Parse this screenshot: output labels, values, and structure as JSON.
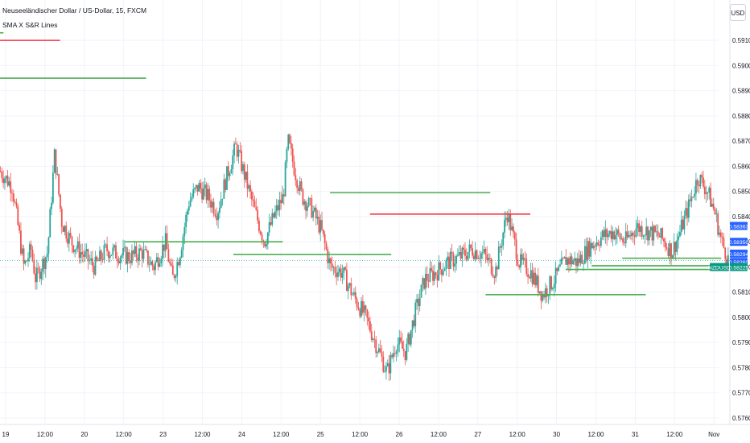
{
  "header": {
    "title": "Neuseeländischer Dollar / US-Dollar, 15, FXCM",
    "indicator": "SMA X S&R Lines"
  },
  "currency_button": "USD",
  "colors": {
    "up": "#26a69a",
    "down": "#ef5350",
    "support": "#4caf50",
    "resistance": "#f23645",
    "price_tag": "#089981",
    "level_tag": "#2962ff",
    "grid": "#f0f3fa"
  },
  "chart_data": {
    "type": "candlestick",
    "symbol": "NZDUSD",
    "title": "Neuseeländischer Dollar / US-Dollar, 15, FXCM",
    "indicator": "SMA X S&R Lines",
    "y_axis": {
      "unit": "USD",
      "range": [
        0.576,
        0.592
      ],
      "ticks": [
        "0.59100",
        "0.59000",
        "0.58900",
        "0.58800",
        "0.58700",
        "0.58600",
        "0.58500",
        "0.58400",
        "0.58300",
        "0.58200",
        "0.58100",
        "0.58000",
        "0.57900",
        "0.57800",
        "0.57700",
        "0.57600"
      ]
    },
    "x_axis": {
      "labels": [
        "19",
        "12:00",
        "20",
        "12:00",
        "23",
        "12:00",
        "24",
        "12:00",
        "25",
        "12:00",
        "26",
        "12:00",
        "27",
        "12:00",
        "30",
        "12:00",
        "31",
        "12:00",
        "Nov"
      ]
    },
    "grid": true,
    "price_path": [
      [
        0.0,
        0.5858
      ],
      [
        0.5,
        0.5852
      ],
      [
        1.0,
        0.582
      ],
      [
        1.3,
        0.5827
      ],
      [
        1.5,
        0.5815
      ],
      [
        2.0,
        0.5826
      ],
      [
        2.3,
        0.5865
      ],
      [
        2.6,
        0.5838
      ],
      [
        3.0,
        0.583
      ],
      [
        3.5,
        0.5825
      ],
      [
        4.0,
        0.582
      ],
      [
        4.5,
        0.5827
      ],
      [
        5.0,
        0.5825
      ],
      [
        5.5,
        0.5824
      ],
      [
        6.0,
        0.5826
      ],
      [
        6.5,
        0.582
      ],
      [
        7.0,
        0.583
      ],
      [
        7.3,
        0.5815
      ],
      [
        7.6,
        0.5825
      ],
      [
        8.0,
        0.5846
      ],
      [
        8.4,
        0.5852
      ],
      [
        8.8,
        0.5848
      ],
      [
        9.2,
        0.5842
      ],
      [
        9.6,
        0.5856
      ],
      [
        10.0,
        0.5868
      ],
      [
        10.4,
        0.5855
      ],
      [
        10.8,
        0.5842
      ],
      [
        11.2,
        0.583
      ],
      [
        11.6,
        0.584
      ],
      [
        12.0,
        0.5848
      ],
      [
        12.2,
        0.587
      ],
      [
        12.5,
        0.5858
      ],
      [
        12.8,
        0.5848
      ],
      [
        13.2,
        0.5843
      ],
      [
        13.6,
        0.5835
      ],
      [
        14.0,
        0.582
      ],
      [
        14.5,
        0.5818
      ],
      [
        15.0,
        0.5808
      ],
      [
        15.5,
        0.58
      ],
      [
        16.0,
        0.5788
      ],
      [
        16.4,
        0.5778
      ],
      [
        16.8,
        0.579
      ],
      [
        17.2,
        0.5786
      ],
      [
        17.6,
        0.5802
      ],
      [
        18.0,
        0.5815
      ],
      [
        18.5,
        0.5818
      ],
      [
        19.0,
        0.5822
      ],
      [
        19.5,
        0.5824
      ],
      [
        20.0,
        0.5827
      ],
      [
        20.5,
        0.5825
      ],
      [
        21.0,
        0.5818
      ],
      [
        21.5,
        0.5842
      ],
      [
        22.0,
        0.5822
      ],
      [
        22.5,
        0.5818
      ],
      [
        23.0,
        0.5809
      ],
      [
        23.5,
        0.5815
      ],
      [
        24.0,
        0.5823
      ],
      [
        24.5,
        0.5822
      ],
      [
        25.0,
        0.5828
      ],
      [
        25.5,
        0.5832
      ],
      [
        26.0,
        0.5834
      ],
      [
        26.5,
        0.583
      ],
      [
        27.0,
        0.5836
      ],
      [
        27.5,
        0.5834
      ],
      [
        28.0,
        0.5832
      ],
      [
        28.5,
        0.5826
      ],
      [
        28.8,
        0.5833
      ],
      [
        29.2,
        0.5844
      ],
      [
        29.6,
        0.5856
      ],
      [
        30.0,
        0.585
      ],
      [
        30.3,
        0.5842
      ],
      [
        30.6,
        0.583
      ],
      [
        30.9,
        0.58225
      ]
    ],
    "sr_lines": [
      {
        "kind": "support",
        "y": 0.5913,
        "x1": 0.0,
        "x2": 0.15
      },
      {
        "kind": "resistance",
        "y": 0.591,
        "x1": 0.0,
        "x2": 2.55
      },
      {
        "kind": "support",
        "y": 0.5895,
        "x1": 0.0,
        "x2": 6.2
      },
      {
        "kind": "support",
        "y": 0.583,
        "x1": 5.3,
        "x2": 12.0
      },
      {
        "kind": "support",
        "y": 0.5825,
        "x1": 9.9,
        "x2": 16.6
      },
      {
        "kind": "support",
        "y": 0.58495,
        "x1": 14.0,
        "x2": 20.8
      },
      {
        "kind": "resistance",
        "y": 0.5841,
        "x1": 15.7,
        "x2": 22.5
      },
      {
        "kind": "support",
        "y": 0.5809,
        "x1": 20.6,
        "x2": 27.4
      },
      {
        "kind": "support",
        "y": 0.58235,
        "x1": 26.4,
        "x2": 30.6
      },
      {
        "kind": "support",
        "y": 0.58205,
        "x1": 25.1,
        "x2": 30.6
      },
      {
        "kind": "support",
        "y": 0.5819,
        "x1": 24.0,
        "x2": 30.6
      }
    ],
    "price_labels": [
      {
        "text": "0.58363",
        "kind": "level",
        "y": 0.58363
      },
      {
        "text": "0.58350",
        "kind": "level",
        "y": 0.583
      },
      {
        "text": "0.58294",
        "kind": "level",
        "y": 0.58253
      },
      {
        "text": "0.58260",
        "kind": "level",
        "y": 0.5822
      },
      {
        "text": "NZDUSD",
        "kind": "symbol",
        "y": 0.582
      },
      {
        "text": "0.58225",
        "kind": "price",
        "y": 0.582
      }
    ],
    "current_price": 0.58225
  }
}
